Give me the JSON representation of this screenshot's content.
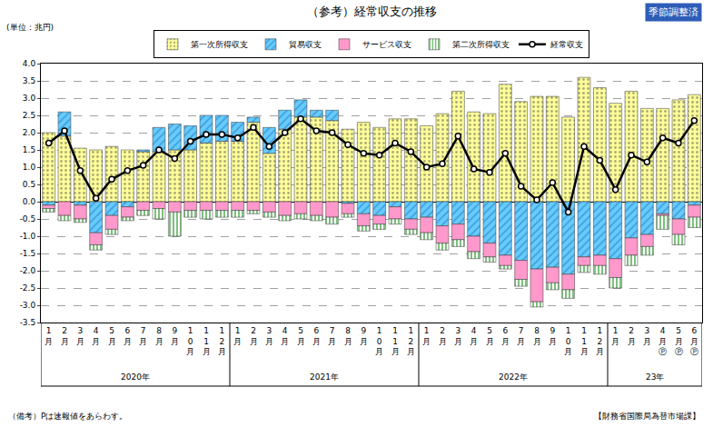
{
  "chart_data": {
    "type": "bar",
    "title": "（参考）経常収支の推移",
    "unit_label": "(単位：兆円)",
    "badge": "季節調整済",
    "notes": [
      "（備考）Pは速報値をあらわす。",
      "【財務省国際局為替市場課】"
    ],
    "stacked": true,
    "grid": true,
    "legend": "top",
    "data_labels": false,
    "categories": [
      "1月",
      "2月",
      "3月",
      "4月",
      "5月",
      "6月",
      "7月",
      "8月",
      "9月",
      "10月",
      "11月",
      "12月",
      "1月",
      "2月",
      "3月",
      "4月",
      "5月",
      "6月",
      "7月",
      "8月",
      "9月",
      "10月",
      "11月",
      "12月",
      "1月",
      "2月",
      "3月",
      "4月",
      "5月",
      "6月",
      "7月",
      "8月",
      "9月",
      "10月",
      "11月",
      "12月",
      "1月",
      "2月",
      "3月",
      "4月Ⓟ",
      "5月Ⓟ",
      "6月Ⓟ"
    ],
    "groups": [
      "2020年",
      "2020年",
      "2020年",
      "2020年",
      "2020年",
      "2020年",
      "2020年",
      "2020年",
      "2020年",
      "2020年",
      "2020年",
      "2020年",
      "2021年",
      "2021年",
      "2021年",
      "2021年",
      "2021年",
      "2021年",
      "2021年",
      "2021年",
      "2021年",
      "2021年",
      "2021年",
      "2021年",
      "2022年",
      "2022年",
      "2022年",
      "2022年",
      "2022年",
      "2022年",
      "2022年",
      "2022年",
      "2022年",
      "2022年",
      "2022年",
      "2022年",
      "23年",
      "23年",
      "23年",
      "23年",
      "23年",
      "23年"
    ],
    "ylim": [
      -3.5,
      4.0
    ],
    "yticks": [
      {
        "value": 4,
        "label": "4.0"
      },
      3.5,
      {
        "value": 3,
        "label": "3.0"
      },
      2.5,
      {
        "value": 2,
        "label": "2.0"
      },
      1.5,
      {
        "value": 1,
        "label": "1.0"
      },
      0.5,
      {
        "value": 0,
        "label": "0.0"
      },
      -0.5,
      {
        "value": -1,
        "label": "-1.0"
      },
      -1.5,
      {
        "value": -2,
        "label": "-2.0"
      },
      -2.5,
      {
        "value": -3,
        "label": "-3.0"
      },
      -3.5
    ],
    "series": [
      {
        "name": "第一次所得収支",
        "type": "bar",
        "color": "#FFFF99",
        "marker": "dots",
        "values": [
          2.0,
          1.9,
          1.55,
          1.5,
          1.6,
          1.5,
          1.45,
          1.45,
          1.5,
          1.5,
          1.7,
          1.75,
          1.75,
          2.3,
          1.4,
          2.1,
          2.45,
          2.45,
          2.35,
          2.1,
          2.3,
          2.15,
          2.4,
          2.4,
          2.2,
          2.55,
          3.2,
          2.6,
          2.55,
          3.4,
          2.9,
          3.05,
          3.05,
          2.45,
          3.6,
          3.3,
          2.85,
          3.2,
          2.7,
          2.7,
          2.95,
          3.1
        ]
      },
      {
        "name": "貿易収支",
        "type": "bar",
        "color": "#66CCFF",
        "marker": "hatch",
        "values": [
          -0.1,
          0.7,
          -0.1,
          -0.9,
          -0.4,
          -0.15,
          0.05,
          0.7,
          0.75,
          0.7,
          0.8,
          0.75,
          0.55,
          0.15,
          0.75,
          0.55,
          0.5,
          0.2,
          0.3,
          -0.05,
          -0.35,
          -0.4,
          -0.15,
          -0.5,
          -0.45,
          -0.7,
          -0.65,
          -1.0,
          -1.2,
          -1.55,
          -1.7,
          -1.95,
          -1.9,
          -2.1,
          -1.6,
          -1.55,
          -1.65,
          -1.05,
          -0.95,
          -0.35,
          -0.5,
          -0.1
        ]
      },
      {
        "name": "サービス収支",
        "type": "bar",
        "color": "#FF99CC",
        "marker": "solid",
        "values": [
          -0.1,
          -0.4,
          -0.4,
          -0.35,
          -0.4,
          -0.3,
          -0.25,
          -0.2,
          -0.3,
          -0.25,
          -0.25,
          -0.25,
          -0.25,
          -0.25,
          -0.3,
          -0.4,
          -0.35,
          -0.4,
          -0.45,
          -0.3,
          -0.35,
          -0.25,
          -0.35,
          -0.3,
          -0.45,
          -0.5,
          -0.45,
          -0.45,
          -0.4,
          -0.3,
          -0.55,
          -0.95,
          -0.45,
          -0.45,
          -0.25,
          -0.3,
          -0.55,
          -0.5,
          -0.35,
          -0.05,
          -0.45,
          -0.35
        ]
      },
      {
        "name": "第二次所得収支",
        "type": "bar",
        "color": "#008000",
        "marker": "stripes",
        "values": [
          -0.1,
          -0.15,
          -0.1,
          -0.15,
          -0.15,
          -0.1,
          -0.15,
          -0.3,
          -0.7,
          -0.2,
          -0.25,
          -0.2,
          -0.2,
          -0.1,
          -0.15,
          -0.15,
          -0.15,
          -0.15,
          -0.2,
          -0.1,
          -0.15,
          -0.15,
          -0.15,
          -0.15,
          -0.2,
          -0.2,
          -0.2,
          -0.2,
          -0.15,
          -0.1,
          -0.2,
          -0.15,
          -0.2,
          -0.25,
          -0.2,
          -0.25,
          -0.3,
          -0.3,
          -0.25,
          -0.4,
          -0.3,
          -0.3
        ]
      },
      {
        "name": "経常収支",
        "type": "line",
        "color": "#000000",
        "marker": "circle",
        "line_style": "solid",
        "values": [
          1.7,
          2.05,
          0.9,
          0.1,
          0.65,
          0.9,
          1.05,
          1.5,
          1.25,
          1.75,
          1.95,
          1.95,
          1.85,
          2.15,
          1.6,
          2.0,
          2.4,
          2.05,
          2.0,
          1.65,
          1.4,
          1.35,
          1.7,
          1.45,
          1.0,
          1.1,
          1.9,
          0.95,
          0.85,
          1.4,
          0.45,
          0.05,
          0.55,
          -0.3,
          1.6,
          1.2,
          0.35,
          1.35,
          1.15,
          1.85,
          1.7,
          2.35
        ]
      }
    ]
  }
}
